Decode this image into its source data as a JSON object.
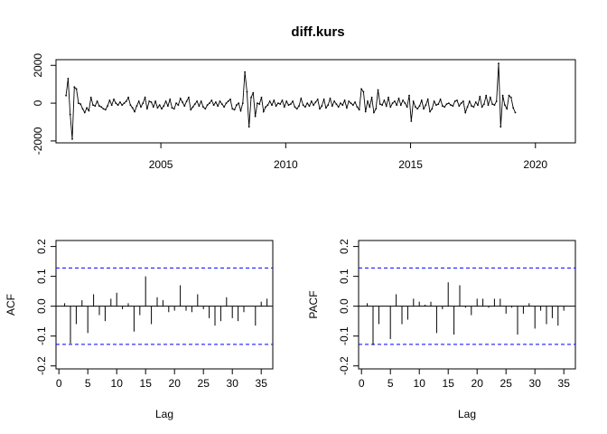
{
  "title": "diff.kurs",
  "colors": {
    "line": "#000000",
    "ci": "#0000ff",
    "axis": "#000000",
    "background": "#ffffff"
  },
  "chart_data": [
    {
      "id": "ts",
      "type": "line",
      "title": "diff.kurs",
      "xlabel": "",
      "ylabel": "",
      "xlim": [
        2000.8,
        2021.6
      ],
      "ylim": [
        -2100,
        2300
      ],
      "xticks": [
        2005,
        2010,
        2015,
        2020
      ],
      "yticks": [
        -2000,
        0,
        2000
      ],
      "x_start": 2001.2,
      "x_step": 0.0833,
      "values": [
        400,
        1300,
        -600,
        -1900,
        850,
        750,
        0,
        -50,
        -300,
        -500,
        -250,
        -400,
        300,
        -100,
        -150,
        100,
        -150,
        -200,
        -300,
        -350,
        -150,
        150,
        -100,
        200,
        0,
        -100,
        50,
        -100,
        0,
        100,
        300,
        -100,
        -250,
        -450,
        -150,
        100,
        -200,
        0,
        300,
        -300,
        100,
        50,
        -200,
        100,
        -250,
        -100,
        -300,
        -150,
        100,
        -150,
        200,
        -250,
        -300,
        0,
        -100,
        250,
        50,
        -150,
        100,
        300,
        -350,
        -200,
        -50,
        100,
        -150,
        100,
        -200,
        -300,
        -100,
        0,
        150,
        -100,
        50,
        -150,
        100,
        -50,
        -200,
        0,
        100,
        200,
        -300,
        -350,
        -100,
        0,
        -400,
        0,
        1650,
        600,
        -1250,
        300,
        550,
        -700,
        0,
        -50,
        300,
        -450,
        -200,
        -100,
        100,
        -100,
        150,
        -150,
        0,
        -50,
        150,
        -200,
        100,
        -100,
        -50,
        100,
        -200,
        -300,
        -150,
        250,
        -100,
        -200,
        0,
        -150,
        100,
        -100,
        50,
        200,
        -300,
        -150,
        200,
        -250,
        -100,
        250,
        -150,
        100,
        -50,
        -200,
        0,
        -100,
        150,
        -250,
        100,
        0,
        -100,
        50,
        -200,
        -350,
        750,
        600,
        -450,
        100,
        -200,
        300,
        -500,
        -300,
        700,
        -50,
        -100,
        150,
        -150,
        300,
        -200,
        0,
        100,
        -100,
        250,
        -100,
        150,
        0,
        -200,
        400,
        -950,
        100,
        -200,
        -300,
        -150,
        150,
        -300,
        -100,
        200,
        -450,
        -300,
        100,
        -100,
        -50,
        200,
        -150,
        -200,
        -50,
        0,
        -100,
        -150,
        100,
        150,
        -150,
        0,
        100,
        -500,
        -200,
        100,
        -150,
        -200,
        50,
        -100,
        350,
        -200,
        -50,
        400,
        -100,
        300,
        -50,
        -100,
        100,
        2100,
        -1250,
        400,
        -100,
        -300,
        400,
        300,
        -250,
        -500
      ]
    },
    {
      "id": "acf",
      "type": "bar",
      "xlabel": "Lag",
      "ylabel": "ACF",
      "xlim": [
        -0.5,
        37
      ],
      "ylim": [
        -0.21,
        0.22
      ],
      "xticks": [
        0,
        5,
        10,
        15,
        20,
        25,
        30,
        35
      ],
      "yticks": [
        -0.2,
        -0.1,
        0.0,
        0.1,
        0.2
      ],
      "ci": 0.128,
      "lags": [
        1,
        2,
        3,
        4,
        5,
        6,
        7,
        8,
        9,
        10,
        11,
        12,
        13,
        14,
        15,
        16,
        17,
        18,
        19,
        20,
        21,
        22,
        23,
        24,
        25,
        26,
        27,
        28,
        29,
        30,
        31,
        32,
        33,
        34,
        35,
        36
      ],
      "values": [
        0.01,
        -0.125,
        -0.06,
        0.02,
        -0.09,
        0.04,
        -0.03,
        -0.05,
        0.025,
        0.045,
        -0.01,
        0.01,
        -0.085,
        -0.03,
        0.1,
        -0.06,
        0.03,
        0.02,
        -0.02,
        -0.015,
        0.07,
        -0.015,
        -0.02,
        0.04,
        -0.01,
        -0.04,
        -0.065,
        -0.05,
        0.03,
        -0.04,
        -0.05,
        -0.02,
        0.0,
        -0.065,
        0.015,
        0.025
      ]
    },
    {
      "id": "pacf",
      "type": "bar",
      "xlabel": "Lag",
      "ylabel": "PACF",
      "xlim": [
        -0.5,
        37
      ],
      "ylim": [
        -0.21,
        0.22
      ],
      "xticks": [
        0,
        5,
        10,
        15,
        20,
        25,
        30,
        35
      ],
      "yticks": [
        -0.2,
        -0.1,
        0.0,
        0.1,
        0.2
      ],
      "ci": 0.128,
      "lags": [
        1,
        2,
        3,
        4,
        5,
        6,
        7,
        8,
        9,
        10,
        11,
        12,
        13,
        14,
        15,
        16,
        17,
        18,
        19,
        20,
        21,
        22,
        23,
        24,
        25,
        26,
        27,
        28,
        29,
        30,
        31,
        32,
        33,
        34,
        35
      ],
      "values": [
        0.01,
        -0.13,
        -0.06,
        0.0,
        -0.11,
        0.04,
        -0.06,
        -0.045,
        0.025,
        0.015,
        0.005,
        0.015,
        -0.09,
        -0.01,
        0.08,
        -0.095,
        0.07,
        -0.005,
        -0.03,
        0.025,
        0.025,
        -0.005,
        0.025,
        0.025,
        -0.025,
        -0.005,
        -0.095,
        -0.025,
        0.01,
        -0.075,
        -0.015,
        -0.06,
        -0.04,
        -0.065,
        -0.015
      ]
    }
  ]
}
